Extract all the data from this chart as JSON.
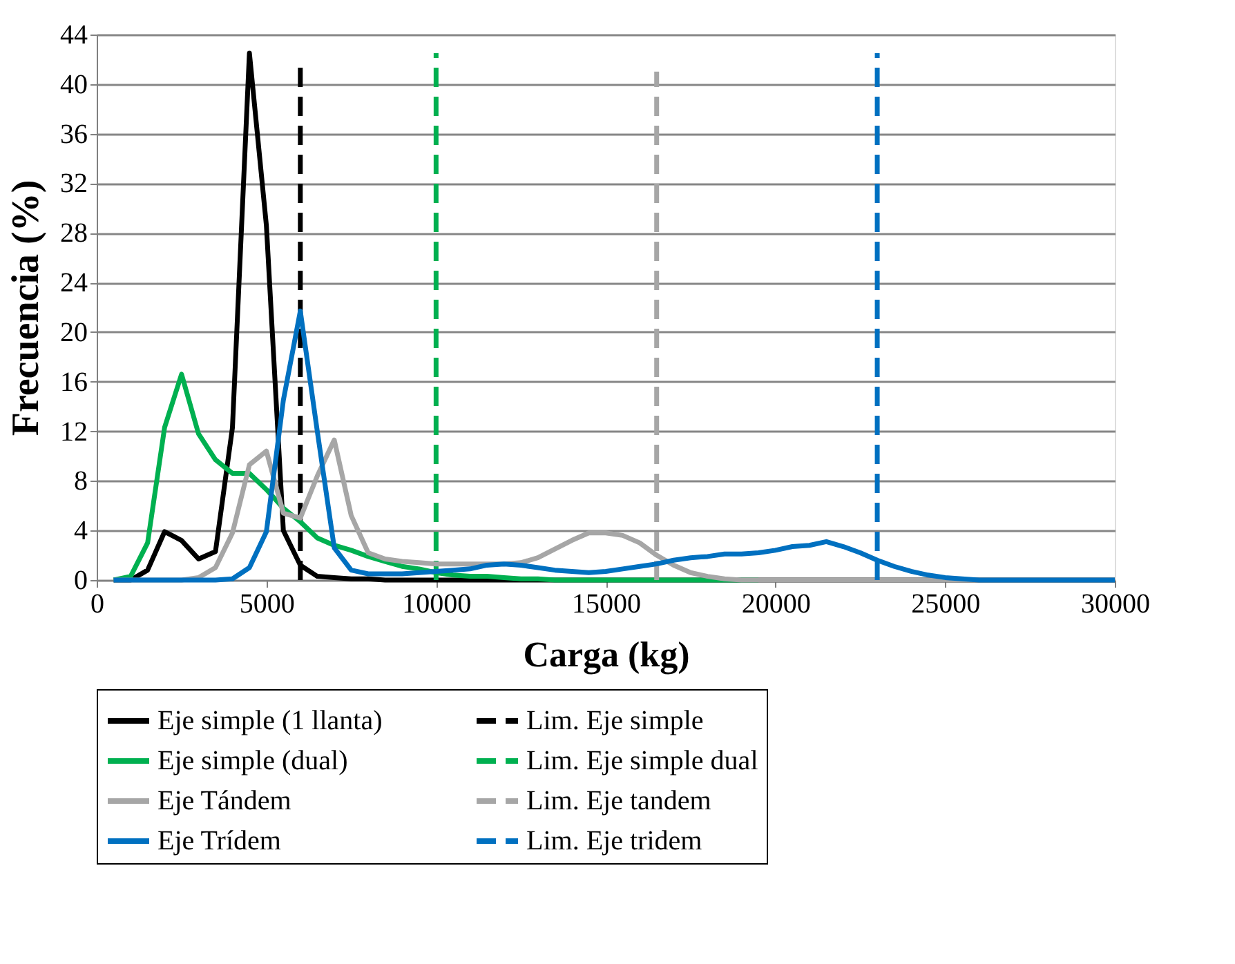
{
  "chart_data": {
    "type": "line",
    "xlabel": "Carga (kg)",
    "ylabel": "Frecuencia (%)",
    "x": [
      500,
      1000,
      1500,
      2000,
      2500,
      3000,
      3500,
      4000,
      4500,
      5000,
      5500,
      6000,
      6500,
      7000,
      7500,
      8000,
      8500,
      9000,
      9500,
      10000,
      10500,
      11000,
      11500,
      12000,
      12500,
      13000,
      13500,
      14000,
      14500,
      15000,
      15500,
      16000,
      16500,
      17000,
      17500,
      18000,
      18500,
      19000,
      19500,
      20000,
      20500,
      21000,
      21500,
      22000,
      22500,
      23000,
      23500,
      24000,
      24500,
      25000,
      25500,
      26000,
      26500,
      27000,
      27500,
      28000,
      28500,
      29000,
      29500,
      30000
    ],
    "series": [
      {
        "name": "Eje simple (1 llanta)",
        "color": "#000000",
        "line_style": "solid",
        "values": [
          0,
          0,
          0.8,
          3.9,
          3.2,
          1.7,
          2.3,
          12.3,
          42.5,
          28.6,
          4,
          1.2,
          0.3,
          0.2,
          0.1,
          0.1,
          0,
          0,
          0,
          0,
          0,
          0,
          0,
          0,
          0,
          0,
          0,
          0,
          0,
          0,
          0,
          0,
          0,
          0,
          0,
          0,
          0,
          0,
          0,
          0,
          0,
          0,
          0,
          0,
          0,
          0,
          0,
          0,
          0,
          0,
          0,
          0,
          0,
          0,
          0,
          0,
          0,
          0,
          0,
          0
        ]
      },
      {
        "name": "Lim. Eje simple",
        "color": "#000000",
        "line_style": "dashed",
        "x": [
          6000,
          6000
        ],
        "values": [
          0,
          41.7
        ]
      },
      {
        "name": "Eje simple (dual)",
        "color": "#00b050",
        "line_style": "solid",
        "values": [
          0,
          0.3,
          3,
          12.3,
          16.6,
          11.8,
          9.7,
          8.6,
          8.6,
          7.3,
          5.8,
          4.7,
          3.4,
          2.8,
          2.4,
          1.9,
          1.5,
          1.1,
          0.9,
          0.6,
          0.4,
          0.3,
          0.3,
          0.2,
          0.1,
          0.1,
          0,
          0,
          0,
          0,
          0,
          0,
          0,
          0,
          0,
          0,
          0,
          0,
          0,
          null,
          null,
          null,
          null,
          null,
          null,
          null,
          null,
          null,
          null,
          null,
          null,
          null,
          null,
          null,
          null,
          null,
          null,
          null,
          null,
          null
        ]
      },
      {
        "name": "Lim. Eje simple dual",
        "color": "#00b050",
        "line_style": "dashed",
        "x": [
          10000,
          10000
        ],
        "values": [
          0,
          42.5
        ]
      },
      {
        "name": "Eje Tándem",
        "color": "#a6a6a6",
        "line_style": "solid",
        "values": [
          0,
          0,
          0,
          0,
          0,
          0.2,
          1,
          3.8,
          9.3,
          10.4,
          5.4,
          5,
          8.4,
          11.3,
          5.2,
          2.2,
          1.7,
          1.5,
          1.4,
          1.3,
          1.3,
          1.3,
          1.3,
          1.3,
          1.4,
          1.8,
          2.5,
          3.2,
          3.8,
          3.8,
          3.6,
          3,
          2,
          1.2,
          0.6,
          0.3,
          0.1,
          0,
          0,
          0,
          0,
          0,
          0,
          0,
          0,
          0,
          0,
          0,
          0,
          0,
          0,
          0,
          0,
          0,
          0,
          0,
          0,
          0,
          0,
          0
        ]
      },
      {
        "name": "Lim. Eje tandem",
        "color": "#a6a6a6",
        "line_style": "dashed",
        "x": [
          16500,
          16500
        ],
        "values": [
          0,
          41
        ]
      },
      {
        "name": "Eje Trídem",
        "color": "#0070c0",
        "line_style": "solid",
        "values": [
          0,
          0,
          0,
          0,
          0,
          0,
          0,
          0.1,
          1,
          3.9,
          14.5,
          21.7,
          12,
          2.6,
          0.8,
          0.5,
          0.5,
          0.5,
          0.6,
          0.7,
          0.8,
          0.9,
          1.2,
          1.3,
          1.2,
          1,
          0.8,
          0.7,
          0.6,
          0.7,
          0.9,
          1.1,
          1.3,
          1.6,
          1.8,
          1.9,
          2.1,
          2.1,
          2.2,
          2.4,
          2.7,
          2.8,
          3.1,
          2.7,
          2.2,
          1.6,
          1.1,
          0.7,
          0.4,
          0.2,
          0.1,
          0,
          0,
          0,
          0,
          0,
          0,
          0,
          0,
          0
        ]
      },
      {
        "name": "Lim. Eje tridem",
        "color": "#0070c0",
        "line_style": "dashed",
        "x": [
          23000,
          23000
        ],
        "values": [
          0,
          42.5
        ]
      }
    ],
    "xlim": [
      0,
      30000
    ],
    "xticks": [
      0,
      5000,
      10000,
      15000,
      20000,
      25000,
      30000
    ],
    "ylim": [
      0,
      44
    ],
    "yticks": [
      0,
      4,
      8,
      12,
      16,
      20,
      24,
      28,
      32,
      36,
      40,
      44
    ],
    "grid": "y",
    "legend": "bottom",
    "marker": "none"
  }
}
